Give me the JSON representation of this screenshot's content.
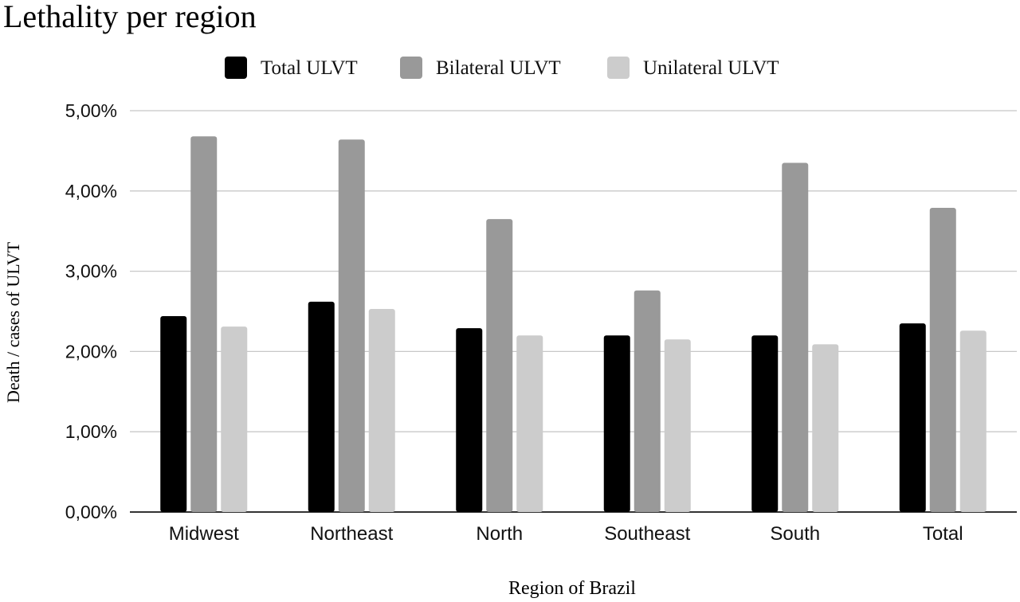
{
  "chart_data": {
    "type": "bar",
    "title": "Lethality per region",
    "xlabel": "Region of Brazil",
    "ylabel": "Death / cases of ULVT",
    "categories": [
      "Midwest",
      "Northeast",
      "North",
      "Southeast",
      "South",
      "Total"
    ],
    "series": [
      {
        "name": "Total ULVT",
        "color": "#000000",
        "values": [
          2.44,
          2.62,
          2.29,
          2.2,
          2.2,
          2.35
        ]
      },
      {
        "name": "Bilateral ULVT",
        "color": "#999999",
        "values": [
          4.68,
          4.64,
          3.65,
          2.76,
          4.35,
          3.79
        ]
      },
      {
        "name": "Unilateral ULVT",
        "color": "#cccccc",
        "values": [
          2.31,
          2.53,
          2.2,
          2.15,
          2.09,
          2.26
        ]
      }
    ],
    "ylim": [
      0,
      5
    ],
    "yticks": [
      "0,00%",
      "1,00%",
      "2,00%",
      "3,00%",
      "4,00%",
      "5,00%"
    ],
    "grid": true,
    "legend_position": "top-center",
    "value_unit": "percent"
  }
}
